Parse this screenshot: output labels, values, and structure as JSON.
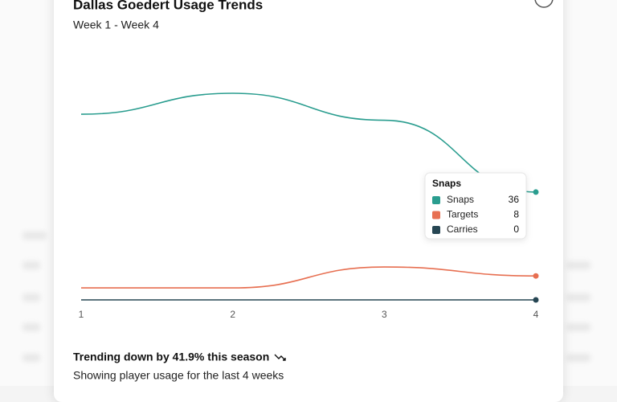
{
  "chart_data": {
    "type": "line",
    "title": "Dallas Goedert Usage Trends",
    "subtitle": "Week 1 - Week 4",
    "categories": [
      "1",
      "2",
      "3",
      "4"
    ],
    "series": [
      {
        "name": "Snaps",
        "color": "#2a9d8f",
        "values": [
          62,
          69,
          60,
          36
        ]
      },
      {
        "name": "Targets",
        "color": "#e76f51",
        "values": [
          4,
          4,
          11,
          8
        ]
      },
      {
        "name": "Carries",
        "color": "#264653",
        "values": [
          0,
          0,
          0,
          0
        ]
      }
    ],
    "trend": "Trending down by 41.9% this season",
    "footnote": "Showing player usage for the last 4 weeks"
  }
}
